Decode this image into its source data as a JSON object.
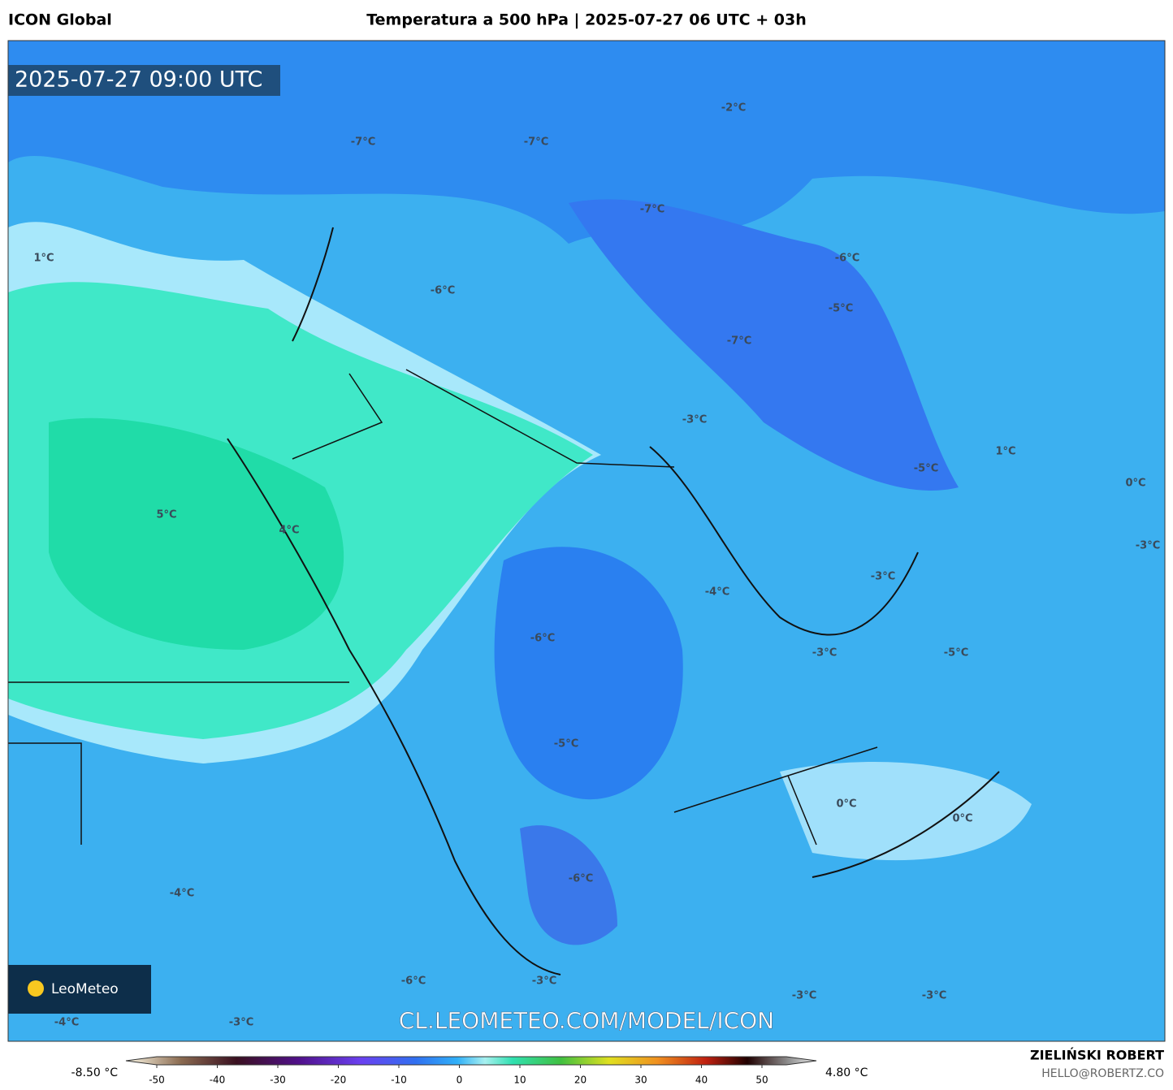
{
  "header": {
    "model": "ICON Global",
    "title": "Temperatura a 500 hPa | 2025-07-27 06 UTC + 03h"
  },
  "map": {
    "timestamp": "2025-07-27 09:00 UTC",
    "watermark": "CL.LEOMETEO.COM/MODEL/ICON",
    "logo": "LeoMeteo",
    "labels": [
      "-2°C",
      "-7°C",
      "-7°C",
      "-7°C",
      "-6°C",
      "-5°C",
      "1°C",
      "-6°C",
      "-7°C",
      "-3°C",
      "1°C",
      "-5°C",
      "0°C",
      "5°C",
      "4°C",
      "-3°C",
      "-3°C",
      "-4°C",
      "-6°C",
      "-3°C",
      "-5°C",
      "-5°C",
      "0°C",
      "0°C",
      "-6°C",
      "-4°C",
      "-6°C",
      "-3°C",
      "-3°C",
      "-3°C",
      "-4°C",
      "-3°C"
    ]
  },
  "colorbar": {
    "min_label": "-8.50 °C",
    "max_label": "4.80 °C",
    "ticks": [
      -50,
      -40,
      -30,
      -20,
      -10,
      0,
      10,
      20,
      30,
      40,
      50
    ]
  },
  "credits": {
    "author": "ZIELIŃSKI ROBERT",
    "email": "HELLO@ROBERTZ.CO"
  }
}
